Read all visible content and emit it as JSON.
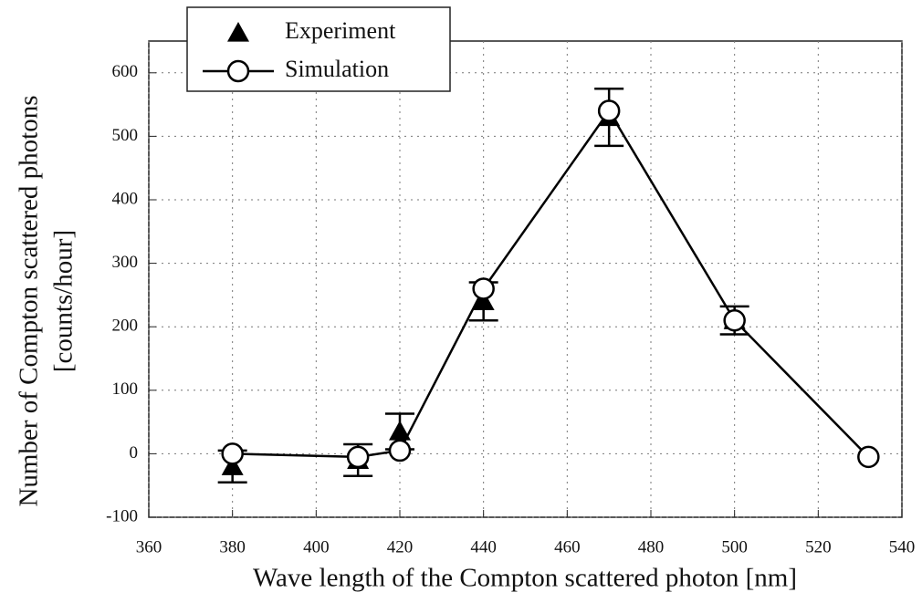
{
  "chart_data": {
    "type": "line",
    "xlabel": "Wave length of the Compton scattered photon [nm]",
    "ylabel": [
      "Number of Compton scattered photons",
      "[counts/hour]"
    ],
    "xlim": [
      360,
      540
    ],
    "xticks": [
      360,
      380,
      400,
      420,
      440,
      460,
      480,
      500,
      520,
      540
    ],
    "ylim": [
      -100,
      650
    ],
    "yticks": [
      -100,
      0,
      100,
      200,
      300,
      400,
      500,
      600
    ],
    "grid": true,
    "legend": "upper left",
    "series": [
      {
        "name": "Experiment",
        "color": "#000000",
        "marker": "triangle",
        "line": false,
        "x": [
          380,
          410,
          420,
          440,
          470,
          500
        ],
        "values": [
          -20,
          -10,
          35,
          240,
          530,
          210
        ],
        "errors": [
          25,
          25,
          28,
          30,
          45,
          22
        ]
      },
      {
        "name": "Simulation",
        "color": "#000000",
        "marker": "circle",
        "line": true,
        "x": [
          380,
          410,
          420,
          440,
          470,
          500,
          532
        ],
        "values": [
          0,
          -5,
          5,
          260,
          540,
          210,
          -5
        ]
      }
    ]
  }
}
